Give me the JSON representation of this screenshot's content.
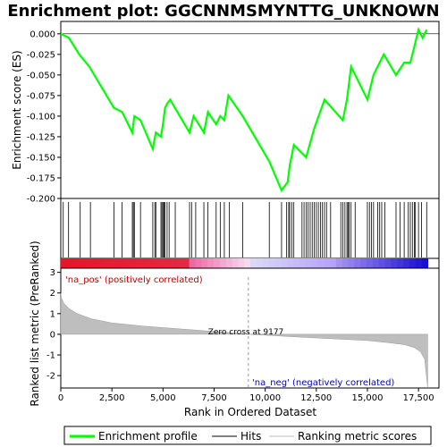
{
  "chart_data": {
    "type": "line",
    "title": "Enrichment plot: GGCNNMSMYNTTG_UNKNOWN",
    "xlabel": "Rank in Ordered Dataset",
    "top_panel": {
      "ylabel": "Enrichment score (ES)",
      "ylim": [
        -0.2,
        0.015
      ],
      "yticks": [
        "0.000",
        "-0.025",
        "-0.050",
        "-0.075",
        "-0.100",
        "-0.125",
        "-0.150",
        "-0.175",
        "-0.200"
      ],
      "ytick_values": [
        0,
        -0.025,
        -0.05,
        -0.075,
        -0.1,
        -0.125,
        -0.15,
        -0.175,
        -0.2
      ],
      "series_name": "Enrichment profile",
      "line_color": "#00ff00",
      "x": [
        0,
        400,
        900,
        1400,
        2600,
        3000,
        3500,
        3600,
        3900,
        4500,
        4650,
        4900,
        5000,
        5100,
        5200,
        5350,
        6300,
        6500,
        7000,
        7200,
        7600,
        7800,
        8000,
        8200,
        8900,
        10200,
        10800,
        11100,
        11200,
        11400,
        12000,
        12400,
        12900,
        13800,
        14000,
        14200,
        14400,
        15000,
        15300,
        15600,
        15800,
        16400,
        16800,
        17100,
        17300,
        17500,
        17700,
        17900
      ],
      "y": [
        0.0,
        -0.005,
        -0.025,
        -0.04,
        -0.09,
        -0.095,
        -0.12,
        -0.1,
        -0.105,
        -0.14,
        -0.12,
        -0.125,
        -0.11,
        -0.09,
        -0.085,
        -0.08,
        -0.12,
        -0.1,
        -0.12,
        -0.095,
        -0.11,
        -0.1,
        -0.105,
        -0.075,
        -0.1,
        -0.155,
        -0.19,
        -0.18,
        -0.16,
        -0.135,
        -0.15,
        -0.115,
        -0.08,
        -0.105,
        -0.08,
        -0.04,
        -0.05,
        -0.08,
        -0.05,
        -0.035,
        -0.025,
        -0.05,
        -0.035,
        -0.035,
        -0.015,
        0.005,
        -0.005,
        0.005
      ]
    },
    "hits": {
      "name": "Hits",
      "positions": [
        120,
        380,
        950,
        1450,
        2600,
        3000,
        3500,
        3550,
        3600,
        3900,
        4500,
        4600,
        4650,
        4900,
        4950,
        5000,
        5050,
        5100,
        5200,
        5300,
        5600,
        6300,
        6400,
        6600,
        7000,
        7200,
        7600,
        7800,
        8000,
        8250,
        8900,
        10200,
        10800,
        11050,
        11150,
        11200,
        11300,
        11400,
        11800,
        11900,
        12000,
        12100,
        12200,
        12300,
        12400,
        12500,
        12600,
        12700,
        12800,
        12900,
        13000,
        13200,
        13700,
        13800,
        13900,
        14000,
        14050,
        14100,
        14200,
        14400,
        15000,
        15100,
        15200,
        15300,
        15500,
        15600,
        15700,
        15850,
        16400,
        16600,
        16800,
        17000,
        17100,
        17200,
        17300,
        17350,
        17500,
        17650,
        17900
      ]
    },
    "metric_panel": {
      "ylabel": "Ranked list metric (PreRanked)",
      "ylim": [
        -2.6,
        3.2
      ],
      "yticks": [
        "3",
        "2",
        "1",
        "0",
        "-1",
        "-2"
      ],
      "ytick_values": [
        3,
        2,
        1,
        0,
        -1,
        -2
      ],
      "series_name": "Ranking metric scores",
      "fill_color": "#bebebe",
      "x": [
        0,
        30,
        150,
        400,
        800,
        1500,
        2500,
        4000,
        6000,
        8000,
        9177,
        11000,
        13000,
        15000,
        16000,
        16800,
        17300,
        17600,
        17800,
        17950
      ],
      "y": [
        2.0,
        1.75,
        1.5,
        1.25,
        1.0,
        0.75,
        0.55,
        0.4,
        0.25,
        0.1,
        0.0,
        -0.1,
        -0.2,
        -0.3,
        -0.4,
        -0.5,
        -0.65,
        -0.85,
        -1.2,
        -2.6
      ]
    },
    "xlim": [
      0,
      18500
    ],
    "xticks": [
      "0",
      "2,500",
      "5,000",
      "7,500",
      "10,000",
      "12,500",
      "15,000",
      "17,500"
    ],
    "xtick_values": [
      0,
      2500,
      5000,
      7500,
      10000,
      12500,
      15000,
      17500
    ],
    "zero_cross": 9177,
    "zero_cross_label": "Zero cross at 9177",
    "pos_label": "'na_pos' (positively correlated)",
    "neg_label": "'na_neg' (negatively correlated)",
    "legend": [
      "Enrichment profile",
      "Hits",
      "Ranking metric scores"
    ]
  }
}
